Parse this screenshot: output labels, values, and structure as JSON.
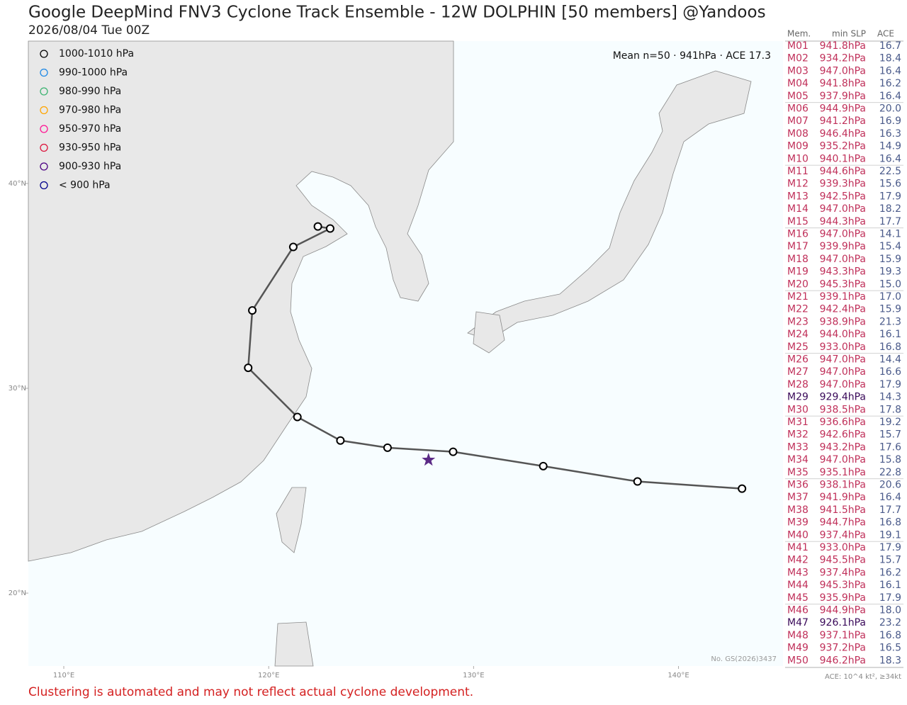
{
  "chart_data": {
    "type": "track-map",
    "title": "Google DeepMind FNV3 Cyclone Track Ensemble - 12W DOLPHIN [50 members] @Yandoos",
    "subtitle": "2026/08/04 Tue 00Z",
    "mean_label": "Mean n=50 · 941hPa · ACE 17.3",
    "map_note": "No. GS(2026)3437",
    "disclaimer": "Clustering is automated and may not reflect actual cyclone development.",
    "xlim": [
      108.27,
      145.1
    ],
    "ylim": [
      16.44,
      46.95
    ],
    "xticks": [
      {
        "value": 110,
        "label": "110°E"
      },
      {
        "value": 120,
        "label": "120°E"
      },
      {
        "value": 130,
        "label": "130°E"
      },
      {
        "value": 140,
        "label": "140°E"
      }
    ],
    "yticks": [
      {
        "value": 20,
        "label": "20°N"
      },
      {
        "value": 30,
        "label": "30°N"
      },
      {
        "value": 40,
        "label": "40°N"
      }
    ],
    "legend": [
      {
        "name": "1000-1010 hPa",
        "color": "#000000"
      },
      {
        "name": "990-1000 hPa",
        "color": "#1e88e5"
      },
      {
        "name": "980-990 hPa",
        "color": "#3cb371"
      },
      {
        "name": "970-980 hPa",
        "color": "#ffa500"
      },
      {
        "name": "950-970 hPa",
        "color": "#ff1493"
      },
      {
        "name": "930-950 hPa",
        "color": "#dc143c"
      },
      {
        "name": "900-930 hPa",
        "color": "#4b0082"
      },
      {
        "name": "< 900 hPa",
        "color": "#00008b"
      }
    ],
    "mean_track": {
      "name": "Mean",
      "color": "#555555",
      "lon": [
        143.1,
        138.0,
        133.4,
        129.0,
        125.8,
        123.5,
        121.4,
        119.0,
        119.2,
        121.2,
        123.0,
        122.4
      ],
      "lat": [
        25.1,
        25.45,
        26.2,
        26.9,
        27.1,
        27.45,
        28.6,
        31.0,
        33.8,
        36.9,
        37.8,
        37.9
      ]
    },
    "current_position": {
      "lon": 127.8,
      "lat": 26.5,
      "color": "#5b2a86"
    },
    "table": {
      "headers": [
        "Mem.",
        "min SLP",
        "ACE"
      ],
      "note": "ACE: 10^4 kt², ≥34kt",
      "rows": [
        {
          "member": "M01",
          "min_slp": "941.8hPa",
          "ace": "16.7",
          "color": "#c0305a"
        },
        {
          "member": "M02",
          "min_slp": "934.2hPa",
          "ace": "18.4",
          "color": "#c0305a"
        },
        {
          "member": "M03",
          "min_slp": "947.0hPa",
          "ace": "16.4",
          "color": "#c0305a"
        },
        {
          "member": "M04",
          "min_slp": "941.8hPa",
          "ace": "16.2",
          "color": "#c0305a"
        },
        {
          "member": "M05",
          "min_slp": "937.9hPa",
          "ace": "16.4",
          "color": "#c0305a"
        },
        {
          "member": "M06",
          "min_slp": "944.9hPa",
          "ace": "20.0",
          "color": "#c0305a"
        },
        {
          "member": "M07",
          "min_slp": "941.2hPa",
          "ace": "16.9",
          "color": "#c0305a"
        },
        {
          "member": "M08",
          "min_slp": "946.4hPa",
          "ace": "16.3",
          "color": "#c0305a"
        },
        {
          "member": "M09",
          "min_slp": "935.2hPa",
          "ace": "14.9",
          "color": "#c0305a"
        },
        {
          "member": "M10",
          "min_slp": "940.1hPa",
          "ace": "16.4",
          "color": "#c0305a"
        },
        {
          "member": "M11",
          "min_slp": "944.6hPa",
          "ace": "22.5",
          "color": "#c0305a"
        },
        {
          "member": "M12",
          "min_slp": "939.3hPa",
          "ace": "15.6",
          "color": "#c0305a"
        },
        {
          "member": "M13",
          "min_slp": "942.5hPa",
          "ace": "17.9",
          "color": "#c0305a"
        },
        {
          "member": "M14",
          "min_slp": "947.0hPa",
          "ace": "18.2",
          "color": "#c0305a"
        },
        {
          "member": "M15",
          "min_slp": "944.3hPa",
          "ace": "17.7",
          "color": "#c0305a"
        },
        {
          "member": "M16",
          "min_slp": "947.0hPa",
          "ace": "14.1",
          "color": "#c0305a"
        },
        {
          "member": "M17",
          "min_slp": "939.9hPa",
          "ace": "15.4",
          "color": "#c0305a"
        },
        {
          "member": "M18",
          "min_slp": "947.0hPa",
          "ace": "15.9",
          "color": "#c0305a"
        },
        {
          "member": "M19",
          "min_slp": "943.3hPa",
          "ace": "19.3",
          "color": "#c0305a"
        },
        {
          "member": "M20",
          "min_slp": "945.3hPa",
          "ace": "15.0",
          "color": "#c0305a"
        },
        {
          "member": "M21",
          "min_slp": "939.1hPa",
          "ace": "17.0",
          "color": "#c0305a"
        },
        {
          "member": "M22",
          "min_slp": "942.4hPa",
          "ace": "15.9",
          "color": "#c0305a"
        },
        {
          "member": "M23",
          "min_slp": "938.9hPa",
          "ace": "21.3",
          "color": "#c0305a"
        },
        {
          "member": "M24",
          "min_slp": "944.0hPa",
          "ace": "16.1",
          "color": "#c0305a"
        },
        {
          "member": "M25",
          "min_slp": "933.0hPa",
          "ace": "16.8",
          "color": "#c0305a"
        },
        {
          "member": "M26",
          "min_slp": "947.0hPa",
          "ace": "14.4",
          "color": "#c0305a"
        },
        {
          "member": "M27",
          "min_slp": "947.0hPa",
          "ace": "16.6",
          "color": "#c0305a"
        },
        {
          "member": "M28",
          "min_slp": "947.0hPa",
          "ace": "17.9",
          "color": "#c0305a"
        },
        {
          "member": "M29",
          "min_slp": "929.4hPa",
          "ace": "14.3",
          "color": "#3a0a5a"
        },
        {
          "member": "M30",
          "min_slp": "938.5hPa",
          "ace": "17.8",
          "color": "#c0305a"
        },
        {
          "member": "M31",
          "min_slp": "936.6hPa",
          "ace": "19.2",
          "color": "#c0305a"
        },
        {
          "member": "M32",
          "min_slp": "942.6hPa",
          "ace": "15.7",
          "color": "#c0305a"
        },
        {
          "member": "M33",
          "min_slp": "943.2hPa",
          "ace": "17.6",
          "color": "#c0305a"
        },
        {
          "member": "M34",
          "min_slp": "947.0hPa",
          "ace": "15.8",
          "color": "#c0305a"
        },
        {
          "member": "M35",
          "min_slp": "935.1hPa",
          "ace": "22.8",
          "color": "#c0305a"
        },
        {
          "member": "M36",
          "min_slp": "938.1hPa",
          "ace": "20.6",
          "color": "#c0305a"
        },
        {
          "member": "M37",
          "min_slp": "941.9hPa",
          "ace": "16.4",
          "color": "#c0305a"
        },
        {
          "member": "M38",
          "min_slp": "941.5hPa",
          "ace": "17.7",
          "color": "#c0305a"
        },
        {
          "member": "M39",
          "min_slp": "944.7hPa",
          "ace": "16.8",
          "color": "#c0305a"
        },
        {
          "member": "M40",
          "min_slp": "937.4hPa",
          "ace": "19.1",
          "color": "#c0305a"
        },
        {
          "member": "M41",
          "min_slp": "933.0hPa",
          "ace": "17.9",
          "color": "#c0305a"
        },
        {
          "member": "M42",
          "min_slp": "945.5hPa",
          "ace": "15.7",
          "color": "#c0305a"
        },
        {
          "member": "M43",
          "min_slp": "937.4hPa",
          "ace": "16.2",
          "color": "#c0305a"
        },
        {
          "member": "M44",
          "min_slp": "945.3hPa",
          "ace": "16.1",
          "color": "#c0305a"
        },
        {
          "member": "M45",
          "min_slp": "935.9hPa",
          "ace": "17.9",
          "color": "#c0305a"
        },
        {
          "member": "M46",
          "min_slp": "944.9hPa",
          "ace": "18.0",
          "color": "#c0305a"
        },
        {
          "member": "M47",
          "min_slp": "926.1hPa",
          "ace": "23.2",
          "color": "#3a0a5a"
        },
        {
          "member": "M48",
          "min_slp": "937.1hPa",
          "ace": "16.8",
          "color": "#c0305a"
        },
        {
          "member": "M49",
          "min_slp": "937.2hPa",
          "ace": "16.5",
          "color": "#c0305a"
        },
        {
          "member": "M50",
          "min_slp": "946.2hPa",
          "ace": "18.3",
          "color": "#c0305a"
        }
      ]
    }
  }
}
